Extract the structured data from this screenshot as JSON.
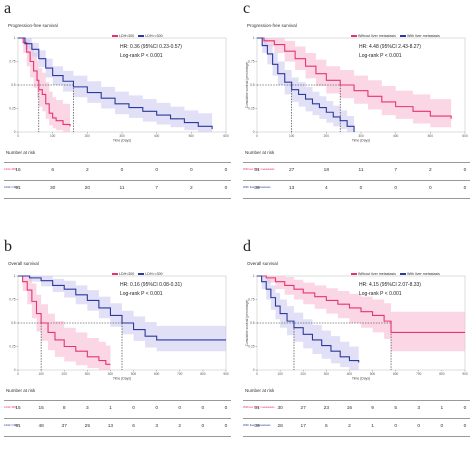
{
  "chart_data": [
    {
      "id": "a",
      "type": "line",
      "letter": "a",
      "title": "Progression-free survival",
      "legend": [
        "LDH<300",
        "LDH>=300"
      ],
      "stats": [
        "HR: 0.36 (95%CI 0.23-0.57)",
        "Log-rank  P < 0.001"
      ],
      "xlabel": "Time (Days)",
      "ylabel": "",
      "xlim": [
        0,
        600
      ],
      "ylim": [
        0,
        1
      ],
      "xticks": [
        0,
        100,
        200,
        300,
        400,
        500,
        600
      ],
      "yticks": [
        0,
        0.25,
        0.5,
        0.75,
        1
      ],
      "median": 0.5,
      "series": [
        {
          "name": "LDH<300",
          "color": "#e8336f",
          "fill": "#f7b6d2",
          "x": [
            0,
            15,
            25,
            35,
            45,
            55,
            60,
            70,
            80,
            90,
            100,
            110,
            130,
            150
          ],
          "y": [
            1,
            0.95,
            0.85,
            0.75,
            0.65,
            0.55,
            0.45,
            0.4,
            0.3,
            0.2,
            0.15,
            0.12,
            0.08,
            0.06
          ],
          "lo": [
            1,
            0.84,
            0.7,
            0.58,
            0.47,
            0.36,
            0.27,
            0.22,
            0.14,
            0.07,
            0.04,
            0.02,
            0.0,
            0.0
          ],
          "hi": [
            1,
            1,
            0.98,
            0.92,
            0.84,
            0.76,
            0.68,
            0.63,
            0.53,
            0.43,
            0.37,
            0.34,
            0.3,
            0.26
          ],
          "median_x": 60
        },
        {
          "name": "LDH>=300",
          "color": "#2b3a9b",
          "fill": "#c9c7f0",
          "x": [
            0,
            20,
            40,
            60,
            80,
            100,
            130,
            160,
            200,
            240,
            280,
            320,
            360,
            400,
            440,
            480,
            520,
            560
          ],
          "y": [
            1,
            0.94,
            0.88,
            0.78,
            0.68,
            0.6,
            0.54,
            0.48,
            0.42,
            0.36,
            0.3,
            0.26,
            0.22,
            0.18,
            0.14,
            0.1,
            0.06,
            0.03
          ],
          "lo": [
            1,
            0.88,
            0.8,
            0.69,
            0.58,
            0.5,
            0.43,
            0.37,
            0.31,
            0.25,
            0.19,
            0.15,
            0.11,
            0.08,
            0.05,
            0.02,
            0.0,
            0.0
          ],
          "hi": [
            1,
            1,
            0.95,
            0.87,
            0.78,
            0.7,
            0.65,
            0.6,
            0.54,
            0.48,
            0.43,
            0.39,
            0.35,
            0.31,
            0.27,
            0.23,
            0.2,
            0.17
          ],
          "median_x": 160
        }
      ],
      "risk_title": "Number at risk",
      "risk_rows": [
        {
          "name": "LDH<300",
          "color": "#e8336f",
          "values": [
            "16",
            "6",
            "2",
            "0",
            "0",
            "0",
            "0"
          ]
        },
        {
          "name": "LDH>=300",
          "color": "#2b3a9b",
          "values": [
            "51",
            "30",
            "20",
            "11",
            "7",
            "2",
            "0"
          ]
        }
      ]
    },
    {
      "id": "c",
      "type": "line",
      "letter": "c",
      "title": "Progression-free survival",
      "legend": [
        "Without liver metastasis",
        "With liver metastasis"
      ],
      "stats": [
        "HR: 4.48 (95%CI 2.43-8.27)",
        "Log-rank  P < 0.001"
      ],
      "xlabel": "Time (Days)",
      "ylabel": "Cumulative survival (percentage)",
      "xlim": [
        0,
        600
      ],
      "ylim": [
        0,
        1
      ],
      "xticks": [
        0,
        100,
        200,
        300,
        400,
        500,
        600
      ],
      "yticks": [
        0,
        0.25,
        0.5,
        0.75,
        1
      ],
      "median": 0.5,
      "series": [
        {
          "name": "Without liver metastasis",
          "color": "#e8336f",
          "fill": "#f7b6d2",
          "x": [
            0,
            20,
            50,
            80,
            110,
            140,
            170,
            200,
            240,
            280,
            320,
            360,
            400,
            450,
            500,
            560
          ],
          "y": [
            1,
            0.97,
            0.93,
            0.86,
            0.78,
            0.7,
            0.62,
            0.55,
            0.5,
            0.44,
            0.38,
            0.32,
            0.27,
            0.22,
            0.17,
            0.14
          ],
          "lo": [
            1,
            0.91,
            0.84,
            0.75,
            0.66,
            0.57,
            0.49,
            0.41,
            0.36,
            0.3,
            0.24,
            0.18,
            0.14,
            0.09,
            0.05,
            0.03
          ],
          "hi": [
            1,
            1,
            1,
            0.97,
            0.91,
            0.84,
            0.77,
            0.7,
            0.66,
            0.6,
            0.55,
            0.49,
            0.44,
            0.4,
            0.35,
            0.32
          ],
          "median_x": 240
        },
        {
          "name": "With liver metastasis",
          "color": "#2b3a9b",
          "fill": "#c9c7f0",
          "x": [
            0,
            15,
            30,
            45,
            60,
            80,
            100,
            120,
            140,
            160,
            180,
            200,
            220,
            240,
            260,
            280
          ],
          "y": [
            1,
            0.92,
            0.83,
            0.72,
            0.62,
            0.53,
            0.45,
            0.4,
            0.35,
            0.3,
            0.26,
            0.21,
            0.16,
            0.12,
            0.06,
            0.0
          ],
          "lo": [
            1,
            0.84,
            0.72,
            0.6,
            0.5,
            0.4,
            0.32,
            0.27,
            0.22,
            0.18,
            0.14,
            0.1,
            0.06,
            0.03,
            0.0,
            0.0
          ],
          "hi": [
            1,
            1,
            0.93,
            0.84,
            0.75,
            0.66,
            0.58,
            0.53,
            0.48,
            0.43,
            0.38,
            0.33,
            0.28,
            0.23,
            0.17,
            0.12
          ],
          "median_x": 100
        }
      ],
      "risk_title": "Number at risk",
      "risk_rows": [
        {
          "name": "Without liver metastasis",
          "color": "#e8336f",
          "values": [
            "31",
            "27",
            "18",
            "11",
            "7",
            "2",
            "0"
          ]
        },
        {
          "name": "With liver metastasis",
          "color": "#2b3a9b",
          "values": [
            "36",
            "13",
            "4",
            "0",
            "0",
            "0",
            "0"
          ]
        }
      ]
    },
    {
      "id": "b",
      "type": "line",
      "letter": "b",
      "title": "Overall survival",
      "legend": [
        "LDH<300",
        "LDH>=300"
      ],
      "stats": [
        "HR: 0.16 (95%CI 0.08-0.31)",
        "Log-rank  P < 0.001"
      ],
      "xlabel": "Time (Days)",
      "ylabel": "",
      "xlim": [
        0,
        900
      ],
      "ylim": [
        0,
        1
      ],
      "xticks": [
        0,
        100,
        200,
        300,
        400,
        500,
        600,
        700,
        800,
        900
      ],
      "yticks": [
        0,
        0.25,
        0.5,
        0.75,
        1
      ],
      "median": 0.5,
      "series": [
        {
          "name": "LDH<300",
          "color": "#e8336f",
          "fill": "#f7b6d2",
          "x": [
            0,
            20,
            40,
            60,
            80,
            100,
            130,
            160,
            200,
            250,
            300,
            350,
            380,
            400
          ],
          "y": [
            1,
            0.94,
            0.85,
            0.73,
            0.6,
            0.5,
            0.4,
            0.32,
            0.25,
            0.2,
            0.14,
            0.1,
            0.06,
            0.06
          ],
          "lo": [
            1,
            0.84,
            0.7,
            0.55,
            0.41,
            0.31,
            0.21,
            0.14,
            0.09,
            0.05,
            0.02,
            0.0,
            0.0,
            0.0
          ],
          "hi": [
            1,
            1,
            1,
            0.92,
            0.8,
            0.7,
            0.6,
            0.52,
            0.45,
            0.4,
            0.34,
            0.3,
            0.26,
            0.26
          ],
          "median_x": 100
        },
        {
          "name": "LDH>=300",
          "color": "#2b3a9b",
          "fill": "#c9c7f0",
          "x": [
            0,
            50,
            100,
            150,
            200,
            250,
            300,
            350,
            400,
            450,
            500,
            550,
            600,
            900
          ],
          "y": [
            1,
            0.98,
            0.95,
            0.9,
            0.86,
            0.8,
            0.74,
            0.66,
            0.58,
            0.5,
            0.43,
            0.36,
            0.32,
            0.32
          ],
          "lo": [
            1,
            0.94,
            0.89,
            0.83,
            0.77,
            0.7,
            0.63,
            0.55,
            0.46,
            0.38,
            0.31,
            0.24,
            0.2,
            0.2
          ],
          "hi": [
            1,
            1,
            1,
            0.97,
            0.95,
            0.9,
            0.85,
            0.78,
            0.71,
            0.63,
            0.57,
            0.51,
            0.47,
            0.47
          ],
          "median_x": 450
        }
      ],
      "risk_title": "Number at risk",
      "risk_rows": [
        {
          "name": "LDH<300",
          "color": "#e8336f",
          "values": [
            "15",
            "15",
            "8",
            "3",
            "1",
            "0",
            "0",
            "0",
            "0",
            "0"
          ]
        },
        {
          "name": "LDH>=300",
          "color": "#2b3a9b",
          "values": [
            "51",
            "48",
            "37",
            "25",
            "13",
            "6",
            "3",
            "2",
            "0",
            "0"
          ]
        }
      ]
    },
    {
      "id": "d",
      "type": "line",
      "letter": "d",
      "title": "Overall survival",
      "legend": [
        "Without liver metastasis",
        "With liver metastasis"
      ],
      "stats": [
        "HR: 4.15 (95%CI 2.07-8.33)",
        "Log-rank  P < 0.001"
      ],
      "xlabel": "Time (Days)",
      "ylabel": "Cumulative survival (percentage)",
      "xlim": [
        0,
        900
      ],
      "ylim": [
        0,
        1
      ],
      "xticks": [
        0,
        100,
        200,
        300,
        400,
        500,
        600,
        700,
        800,
        900
      ],
      "yticks": [
        0,
        0.25,
        0.5,
        0.75,
        1
      ],
      "median": 0.5,
      "series": [
        {
          "name": "Without liver metastasis",
          "color": "#e8336f",
          "fill": "#f7b6d2",
          "x": [
            0,
            40,
            80,
            120,
            160,
            200,
            250,
            300,
            350,
            400,
            450,
            500,
            550,
            580,
            900
          ],
          "y": [
            1,
            0.98,
            0.94,
            0.9,
            0.86,
            0.82,
            0.78,
            0.74,
            0.7,
            0.66,
            0.62,
            0.58,
            0.52,
            0.4,
            0.4
          ],
          "lo": [
            1,
            0.93,
            0.86,
            0.8,
            0.75,
            0.7,
            0.65,
            0.6,
            0.55,
            0.5,
            0.45,
            0.4,
            0.33,
            0.2,
            0.2
          ],
          "hi": [
            1,
            1,
            1,
            0.99,
            0.96,
            0.93,
            0.9,
            0.87,
            0.84,
            0.81,
            0.78,
            0.75,
            0.71,
            0.62,
            0.62
          ],
          "median_x": 580
        },
        {
          "name": "With liver metastasis",
          "color": "#2b3a9b",
          "fill": "#c9c7f0",
          "x": [
            0,
            20,
            40,
            60,
            80,
            100,
            130,
            160,
            200,
            240,
            280,
            320,
            360,
            400,
            440
          ],
          "y": [
            1,
            0.94,
            0.86,
            0.77,
            0.68,
            0.6,
            0.52,
            0.45,
            0.38,
            0.32,
            0.26,
            0.2,
            0.14,
            0.1,
            0.08
          ],
          "lo": [
            1,
            0.86,
            0.75,
            0.64,
            0.54,
            0.45,
            0.37,
            0.3,
            0.23,
            0.17,
            0.12,
            0.07,
            0.03,
            0.0,
            0.0
          ],
          "hi": [
            1,
            1,
            0.97,
            0.9,
            0.82,
            0.75,
            0.68,
            0.61,
            0.54,
            0.48,
            0.42,
            0.36,
            0.3,
            0.25,
            0.22
          ],
          "median_x": 160
        }
      ],
      "risk_title": "Number at risk",
      "risk_rows": [
        {
          "name": "Without liver metastasis",
          "color": "#e8336f",
          "values": [
            "31",
            "30",
            "27",
            "23",
            "16",
            "9",
            "5",
            "3",
            "1",
            "0"
          ]
        },
        {
          "name": "With liver metastasis",
          "color": "#2b3a9b",
          "values": [
            "36",
            "28",
            "17",
            "6",
            "2",
            "1",
            "0",
            "0",
            "0",
            "0"
          ]
        }
      ]
    }
  ]
}
